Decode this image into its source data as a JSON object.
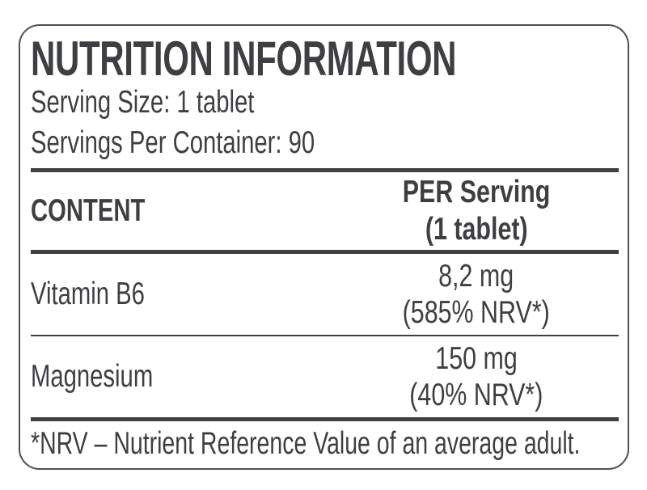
{
  "label": {
    "title": "NUTRITION INFORMATION",
    "serving_size_line": "Serving Size: 1 tablet",
    "servings_per_container_line": "Servings Per Container: 90",
    "table": {
      "content_header": "CONTENT",
      "per_serving_header_line1": "PER Serving",
      "per_serving_header_line2": "(1 tablet)",
      "rows": [
        {
          "name": "Vitamin B6",
          "amount": "8,2 mg",
          "nrv": "(585% NRV*)"
        },
        {
          "name": "Magnesium",
          "amount": "150 mg",
          "nrv": "(40% NRV*)"
        }
      ]
    },
    "footnote": "*NRV – Nutrient Reference Value of an average adult.",
    "colors": {
      "text": "#3e3f42",
      "rule": "#3e3f42",
      "border": "#4d4f52",
      "background": "#ffffff"
    }
  }
}
